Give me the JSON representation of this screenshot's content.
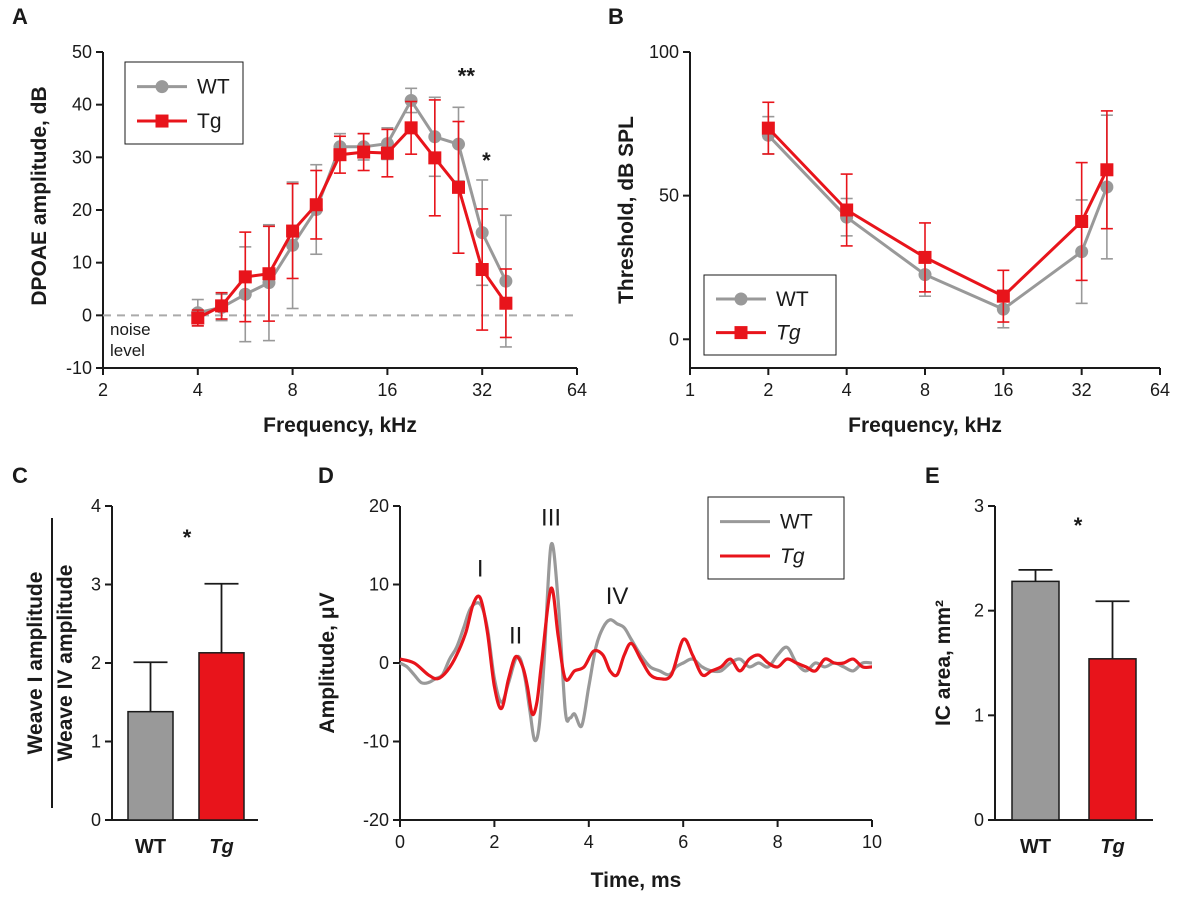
{
  "colors": {
    "wt": "#999999",
    "tg": "#e8141b",
    "axis": "#1a1a1a",
    "grid": "#aaaaaa"
  },
  "chart_data": [
    {
      "id": "A",
      "type": "line",
      "panel_label": "A",
      "xlabel": "Frequency, kHz",
      "ylabel": "DPOAE amplitude, dB",
      "xscale": "log2",
      "xlim": [
        2,
        64
      ],
      "ylim": [
        -10,
        50
      ],
      "xticks": [
        2,
        4,
        8,
        16,
        32,
        64
      ],
      "xtick_labels": [
        "2",
        "4",
        "8",
        "16",
        "32",
        "64"
      ],
      "yticks": [
        -10,
        0,
        10,
        20,
        30,
        40,
        50
      ],
      "ytick_labels": [
        "-10",
        "0",
        "10",
        "20",
        "30",
        "40",
        "50"
      ],
      "legend": [
        "WT",
        "Tg"
      ],
      "legend_position": "top-left",
      "reference_line": {
        "y": 0,
        "label_lines": [
          "noise",
          "level"
        ]
      },
      "annotations": [
        {
          "text": "**",
          "x": 28.5,
          "y": 44
        },
        {
          "text": "*",
          "x": 33,
          "y": 28
        }
      ],
      "x": [
        4,
        4.76,
        5.66,
        6.73,
        8,
        9.51,
        11.31,
        13.45,
        16,
        19.03,
        22.63,
        26.91,
        32,
        38.05
      ],
      "series": [
        {
          "name": "WT",
          "marker": "circle",
          "values": [
            0.5,
            1.5,
            4.0,
            6.2,
            13.3,
            20.1,
            32.0,
            32.0,
            32.6,
            40.8,
            33.9,
            32.5,
            15.7,
            6.5
          ],
          "err": [
            2.5,
            2.5,
            9.0,
            11.0,
            12.0,
            8.5,
            2.5,
            2.5,
            3.0,
            2.3,
            7.5,
            7.0,
            10.0,
            12.5
          ]
        },
        {
          "name": "Tg",
          "marker": "square",
          "values": [
            -0.5,
            1.8,
            7.3,
            7.9,
            16.0,
            21.0,
            30.5,
            31.0,
            30.8,
            35.6,
            29.9,
            24.3,
            8.7,
            2.3
          ],
          "err": [
            1.5,
            2.5,
            8.5,
            9.0,
            9.0,
            6.5,
            3.5,
            3.5,
            4.5,
            5.0,
            11.0,
            12.5,
            11.5,
            6.5
          ]
        }
      ]
    },
    {
      "id": "B",
      "type": "line",
      "panel_label": "B",
      "xlabel": "Frequency, kHz",
      "ylabel": "Threshold, dB SPL",
      "xscale": "log2",
      "xlim": [
        1,
        64
      ],
      "ylim": [
        -10,
        100
      ],
      "xticks": [
        1,
        2,
        4,
        8,
        16,
        32,
        64
      ],
      "xtick_labels": [
        "1",
        "2",
        "4",
        "8",
        "16",
        "32",
        "64"
      ],
      "yticks": [
        0,
        50,
        100
      ],
      "ytick_labels": [
        "0",
        "50",
        "100"
      ],
      "legend": [
        "WT",
        "Tg"
      ],
      "legend_position": "bottom-left",
      "x": [
        2,
        4,
        8,
        16,
        32,
        40
      ],
      "series": [
        {
          "name": "WT",
          "marker": "circle",
          "values": [
            71,
            42.5,
            22.5,
            10.5,
            30.5,
            53
          ],
          "err": [
            6.5,
            6.5,
            7.5,
            6.5,
            18,
            25
          ]
        },
        {
          "name": "Tg",
          "marker": "square",
          "values": [
            73.5,
            45,
            28.5,
            15,
            41,
            59
          ],
          "err": [
            9.0,
            12.5,
            12.0,
            9.0,
            20.5,
            20.5
          ]
        }
      ]
    },
    {
      "id": "C",
      "type": "bar",
      "panel_label": "C",
      "categories": [
        "WT",
        "Tg"
      ],
      "values": [
        1.38,
        2.13
      ],
      "err": [
        0.63,
        0.88
      ],
      "ylim": [
        0,
        4
      ],
      "yticks": [
        0,
        1,
        2,
        3,
        4
      ],
      "ytick_labels": [
        "0",
        "1",
        "2",
        "3",
        "4"
      ],
      "ylabel_numerator": "Weave I amplitude",
      "ylabel_denominator": "Weave IV amplitude",
      "annotations": [
        {
          "text": "*"
        }
      ]
    },
    {
      "id": "D",
      "type": "line",
      "panel_label": "D",
      "xlabel": "Time, ms",
      "ylabel": "Amplitude, μV",
      "xlim": [
        0,
        10
      ],
      "ylim": [
        -20,
        20
      ],
      "xticks": [
        0,
        2,
        4,
        6,
        8,
        10
      ],
      "xtick_labels": [
        "0",
        "2",
        "4",
        "6",
        "8",
        "10"
      ],
      "yticks": [
        -20,
        -10,
        0,
        10,
        20
      ],
      "ytick_labels": [
        "-20",
        "-10",
        "0",
        "10",
        "20"
      ],
      "legend": [
        "WT",
        "Tg"
      ],
      "legend_position": "top-right",
      "peak_labels": [
        {
          "text": "I",
          "x": 1.7,
          "y": 11
        },
        {
          "text": "II",
          "x": 2.45,
          "y": 2.5
        },
        {
          "text": "III",
          "x": 3.2,
          "y": 17.5
        },
        {
          "text": "IV",
          "x": 4.6,
          "y": 7.5
        }
      ],
      "series": [
        {
          "name": "WT",
          "x": [
            0,
            0.15,
            0.3,
            0.45,
            0.6,
            0.75,
            0.9,
            1.05,
            1.2,
            1.35,
            1.5,
            1.7,
            1.85,
            2.0,
            2.15,
            2.3,
            2.45,
            2.55,
            2.65,
            2.75,
            2.85,
            2.95,
            3.05,
            3.2,
            3.35,
            3.5,
            3.6,
            3.7,
            3.85,
            4.0,
            4.15,
            4.3,
            4.45,
            4.6,
            4.75,
            4.9,
            5.1,
            5.3,
            5.5,
            5.7,
            5.85,
            6.0,
            6.2,
            6.4,
            6.6,
            6.8,
            7.0,
            7.2,
            7.4,
            7.6,
            7.8,
            8.0,
            8.2,
            8.4,
            8.6,
            8.8,
            9.0,
            9.2,
            9.4,
            9.6,
            9.8,
            10.0
          ],
          "y": [
            0,
            -0.5,
            -1.5,
            -2.5,
            -2.5,
            -2.0,
            -1.5,
            0.5,
            2.0,
            4.5,
            7.0,
            7.5,
            4.5,
            -2.0,
            -5.0,
            -2.5,
            0.5,
            0.5,
            -2.0,
            -6.0,
            -9.8,
            -8.0,
            0.0,
            15.0,
            8.0,
            -6.0,
            -7.0,
            -6.5,
            -8.0,
            -3.0,
            2.0,
            4.5,
            5.5,
            5.0,
            4.5,
            3.0,
            1.0,
            -0.5,
            -1.0,
            -1.5,
            -0.5,
            0.0,
            0.5,
            -0.5,
            -1.0,
            -1.0,
            0.0,
            0.5,
            -0.5,
            0.0,
            -0.5,
            1.0,
            2.0,
            0.0,
            -1.0,
            0.0,
            -0.5,
            0.0,
            -0.5,
            -1.0,
            0.0,
            0.0
          ]
        },
        {
          "name": "Tg",
          "x": [
            0,
            0.3,
            0.6,
            0.8,
            1.0,
            1.2,
            1.4,
            1.55,
            1.7,
            1.85,
            2.0,
            2.15,
            2.3,
            2.45,
            2.6,
            2.7,
            2.8,
            2.9,
            3.0,
            3.2,
            3.35,
            3.5,
            3.7,
            3.9,
            4.1,
            4.3,
            4.45,
            4.6,
            4.75,
            4.9,
            5.1,
            5.3,
            5.5,
            5.75,
            6.0,
            6.2,
            6.4,
            6.6,
            6.8,
            7.0,
            7.2,
            7.4,
            7.6,
            7.8,
            8.0,
            8.2,
            8.4,
            8.6,
            8.8,
            9.0,
            9.2,
            9.4,
            9.6,
            9.8,
            10.0
          ],
          "y": [
            0.5,
            0,
            -1.5,
            -2.0,
            -1.0,
            1.0,
            4.0,
            7.5,
            8.3,
            4.0,
            -3.0,
            -5.8,
            -2.0,
            0.8,
            -0.5,
            -3.0,
            -6.5,
            -5.0,
            0.0,
            9.5,
            3.5,
            -2.0,
            -1.0,
            -0.5,
            1.5,
            1.0,
            -1.0,
            -1.5,
            1.0,
            2.5,
            0.5,
            -1.5,
            -2.0,
            -1.5,
            3.0,
            1.0,
            -1.5,
            -1.0,
            -0.5,
            0.5,
            -1.0,
            0.5,
            1.0,
            0.0,
            -0.5,
            0.5,
            0.0,
            -0.5,
            -1.0,
            0.5,
            0.0,
            0.0,
            0.5,
            -0.5,
            -0.5
          ]
        }
      ]
    },
    {
      "id": "E",
      "type": "bar",
      "panel_label": "E",
      "categories": [
        "WT",
        "Tg"
      ],
      "values": [
        2.28,
        1.54
      ],
      "err": [
        0.11,
        0.55
      ],
      "ylim": [
        0,
        3
      ],
      "yticks": [
        0,
        1,
        2,
        3
      ],
      "ytick_labels": [
        "0",
        "1",
        "2",
        "3"
      ],
      "ylabel": "IC area, mm²",
      "annotations": [
        {
          "text": "*"
        }
      ]
    }
  ]
}
